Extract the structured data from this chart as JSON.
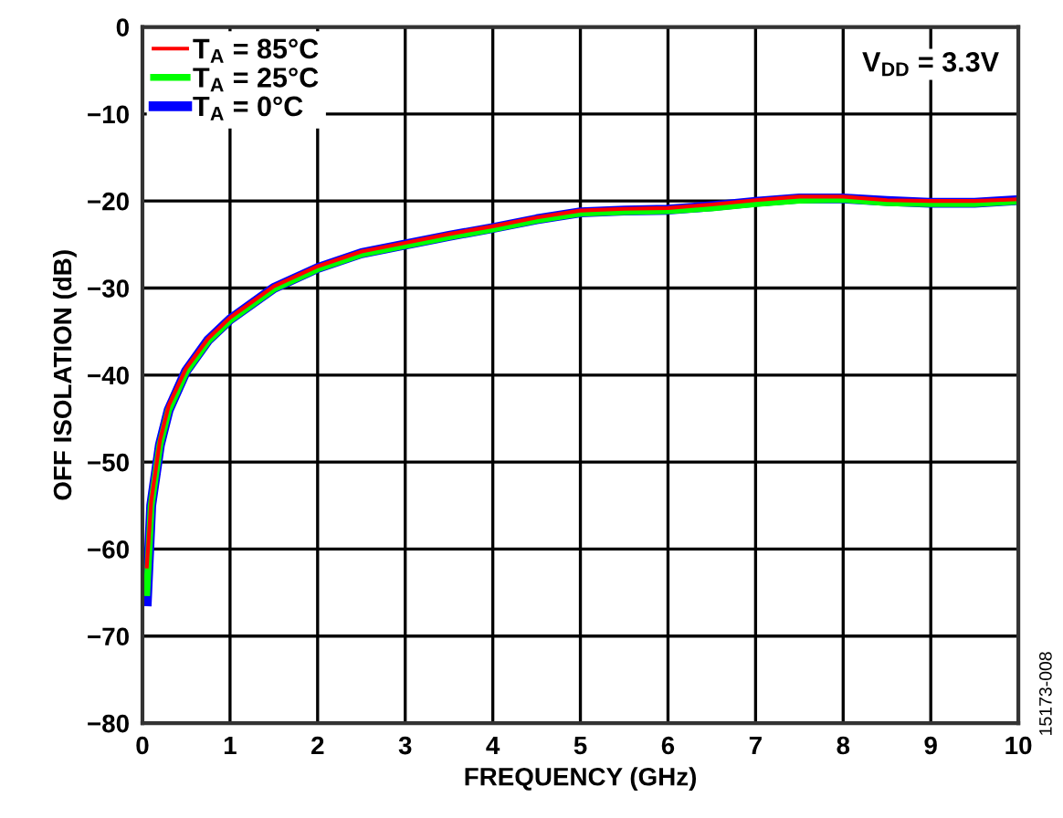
{
  "chart_data": {
    "type": "line",
    "xlabel": "FREQUENCY (GHz)",
    "ylabel": "OFF ISOLATION (dB)",
    "xlim": [
      0,
      10
    ],
    "xticks": [
      0,
      1,
      2,
      3,
      4,
      5,
      6,
      7,
      8,
      9,
      10
    ],
    "ylim": [
      -80,
      0
    ],
    "yticks": [
      0,
      {
        "value": -10,
        "label": "−10"
      },
      {
        "value": -20,
        "label": "−20"
      },
      {
        "value": -30,
        "label": "−30"
      },
      {
        "value": -40,
        "label": "−40"
      },
      {
        "value": -50,
        "label": "−50"
      },
      {
        "value": -60,
        "label": "−60"
      },
      {
        "value": -70,
        "label": "−70"
      },
      {
        "value": -80,
        "label": "−80"
      }
    ],
    "grid": true,
    "legend": "top left",
    "marker": "none",
    "line_style": "solid",
    "x": [
      0.05,
      0.1,
      0.2,
      0.3,
      0.5,
      0.75,
      1,
      1.5,
      2,
      2.5,
      3,
      3.5,
      4,
      4.5,
      5,
      5.5,
      6,
      6.5,
      7,
      7.5,
      8,
      8.5,
      9,
      9.5,
      10
    ],
    "series": [
      {
        "name": "T$_{A}$ = 0°C",
        "color": "#0000ff",
        "values": [
          -66,
          -55,
          -48,
          -44,
          -39.5,
          -36,
          -33.6,
          -30,
          -27.7,
          -26,
          -25,
          -24,
          -23.1,
          -22.1,
          -21.3,
          -21.1,
          -21,
          -20.6,
          -20.1,
          -19.7,
          -19.7,
          -20,
          -20.2,
          -20.2,
          -19.9
        ]
      },
      {
        "name": "T$_{A}$ = 25°C",
        "color": "#00ff00",
        "values": [
          -65,
          -55,
          -48,
          -44,
          -39.6,
          -36.1,
          -33.7,
          -30.1,
          -27.8,
          -26.1,
          -25.1,
          -24.1,
          -23.2,
          -22.2,
          -21.4,
          -21.2,
          -21.1,
          -20.8,
          -20.3,
          -19.9,
          -19.8,
          -20.2,
          -20.3,
          -20.3,
          -20
        ]
      },
      {
        "name": "T$_{A}$ = 85°C",
        "color": "#ff0000",
        "values": [
          -62,
          -54.5,
          -47.5,
          -43.5,
          -39.2,
          -35.8,
          -33.4,
          -29.8,
          -27.5,
          -25.8,
          -24.8,
          -23.8,
          -22.9,
          -21.9,
          -21.1,
          -20.9,
          -20.8,
          -20.4,
          -19.9,
          -19.5,
          -19.5,
          -19.9,
          -20,
          -20,
          -19.8
        ]
      }
    ],
    "annotations": [
      "V$_{DD}$ = 3.3V",
      "15173-008"
    ]
  }
}
